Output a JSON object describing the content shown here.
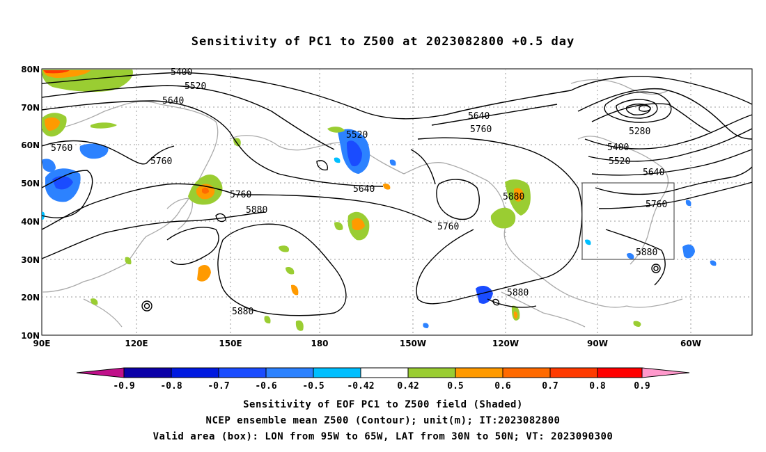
{
  "title": "Sensitivity of PC1 to Z500 at 2023082800 +0.5 day",
  "map": {
    "lat_labels": [
      "80N",
      "70N",
      "60N",
      "50N",
      "40N",
      "30N",
      "20N",
      "10N"
    ],
    "lon_labels": [
      "90E",
      "120E",
      "150E",
      "180",
      "150W",
      "120W",
      "90W",
      "60W"
    ],
    "contour_labels": [
      "5400",
      "5520",
      "5640",
      "5760",
      "5760",
      "5520",
      "5640",
      "5760",
      "5640",
      "5760",
      "5880",
      "5880",
      "5760",
      "5880",
      "5280",
      "5400",
      "5520",
      "5640",
      "5760",
      "5880",
      "5880"
    ],
    "valid_box": {
      "lon_min": "95W",
      "lon_max": "65W",
      "lat_min": "30N",
      "lat_max": "50N"
    }
  },
  "colorbar": {
    "labels": [
      "-0.9",
      "-0.8",
      "-0.7",
      "-0.6",
      "-0.5",
      "-0.42",
      "0.42",
      "0.5",
      "0.6",
      "0.7",
      "0.8",
      "0.9"
    ],
    "colors": [
      "#c0108a",
      "#0b00a8",
      "#0019e0",
      "#1a4cff",
      "#2c82ff",
      "#00bfff",
      "#ffffff",
      "#9acd32",
      "#ff9a00",
      "#ff6a00",
      "#ff3a00",
      "#ff0000",
      "#ff99cc"
    ]
  },
  "captions": [
    "Sensitivity of EOF PC1 to Z500 field (Shaded)",
    "NCEP ensemble mean Z500 (Contour); unit(m); IT:2023082800",
    "Valid area (box): LON from 95W to 65W, LAT from 30N to 50N; VT: 2023090300"
  ]
}
